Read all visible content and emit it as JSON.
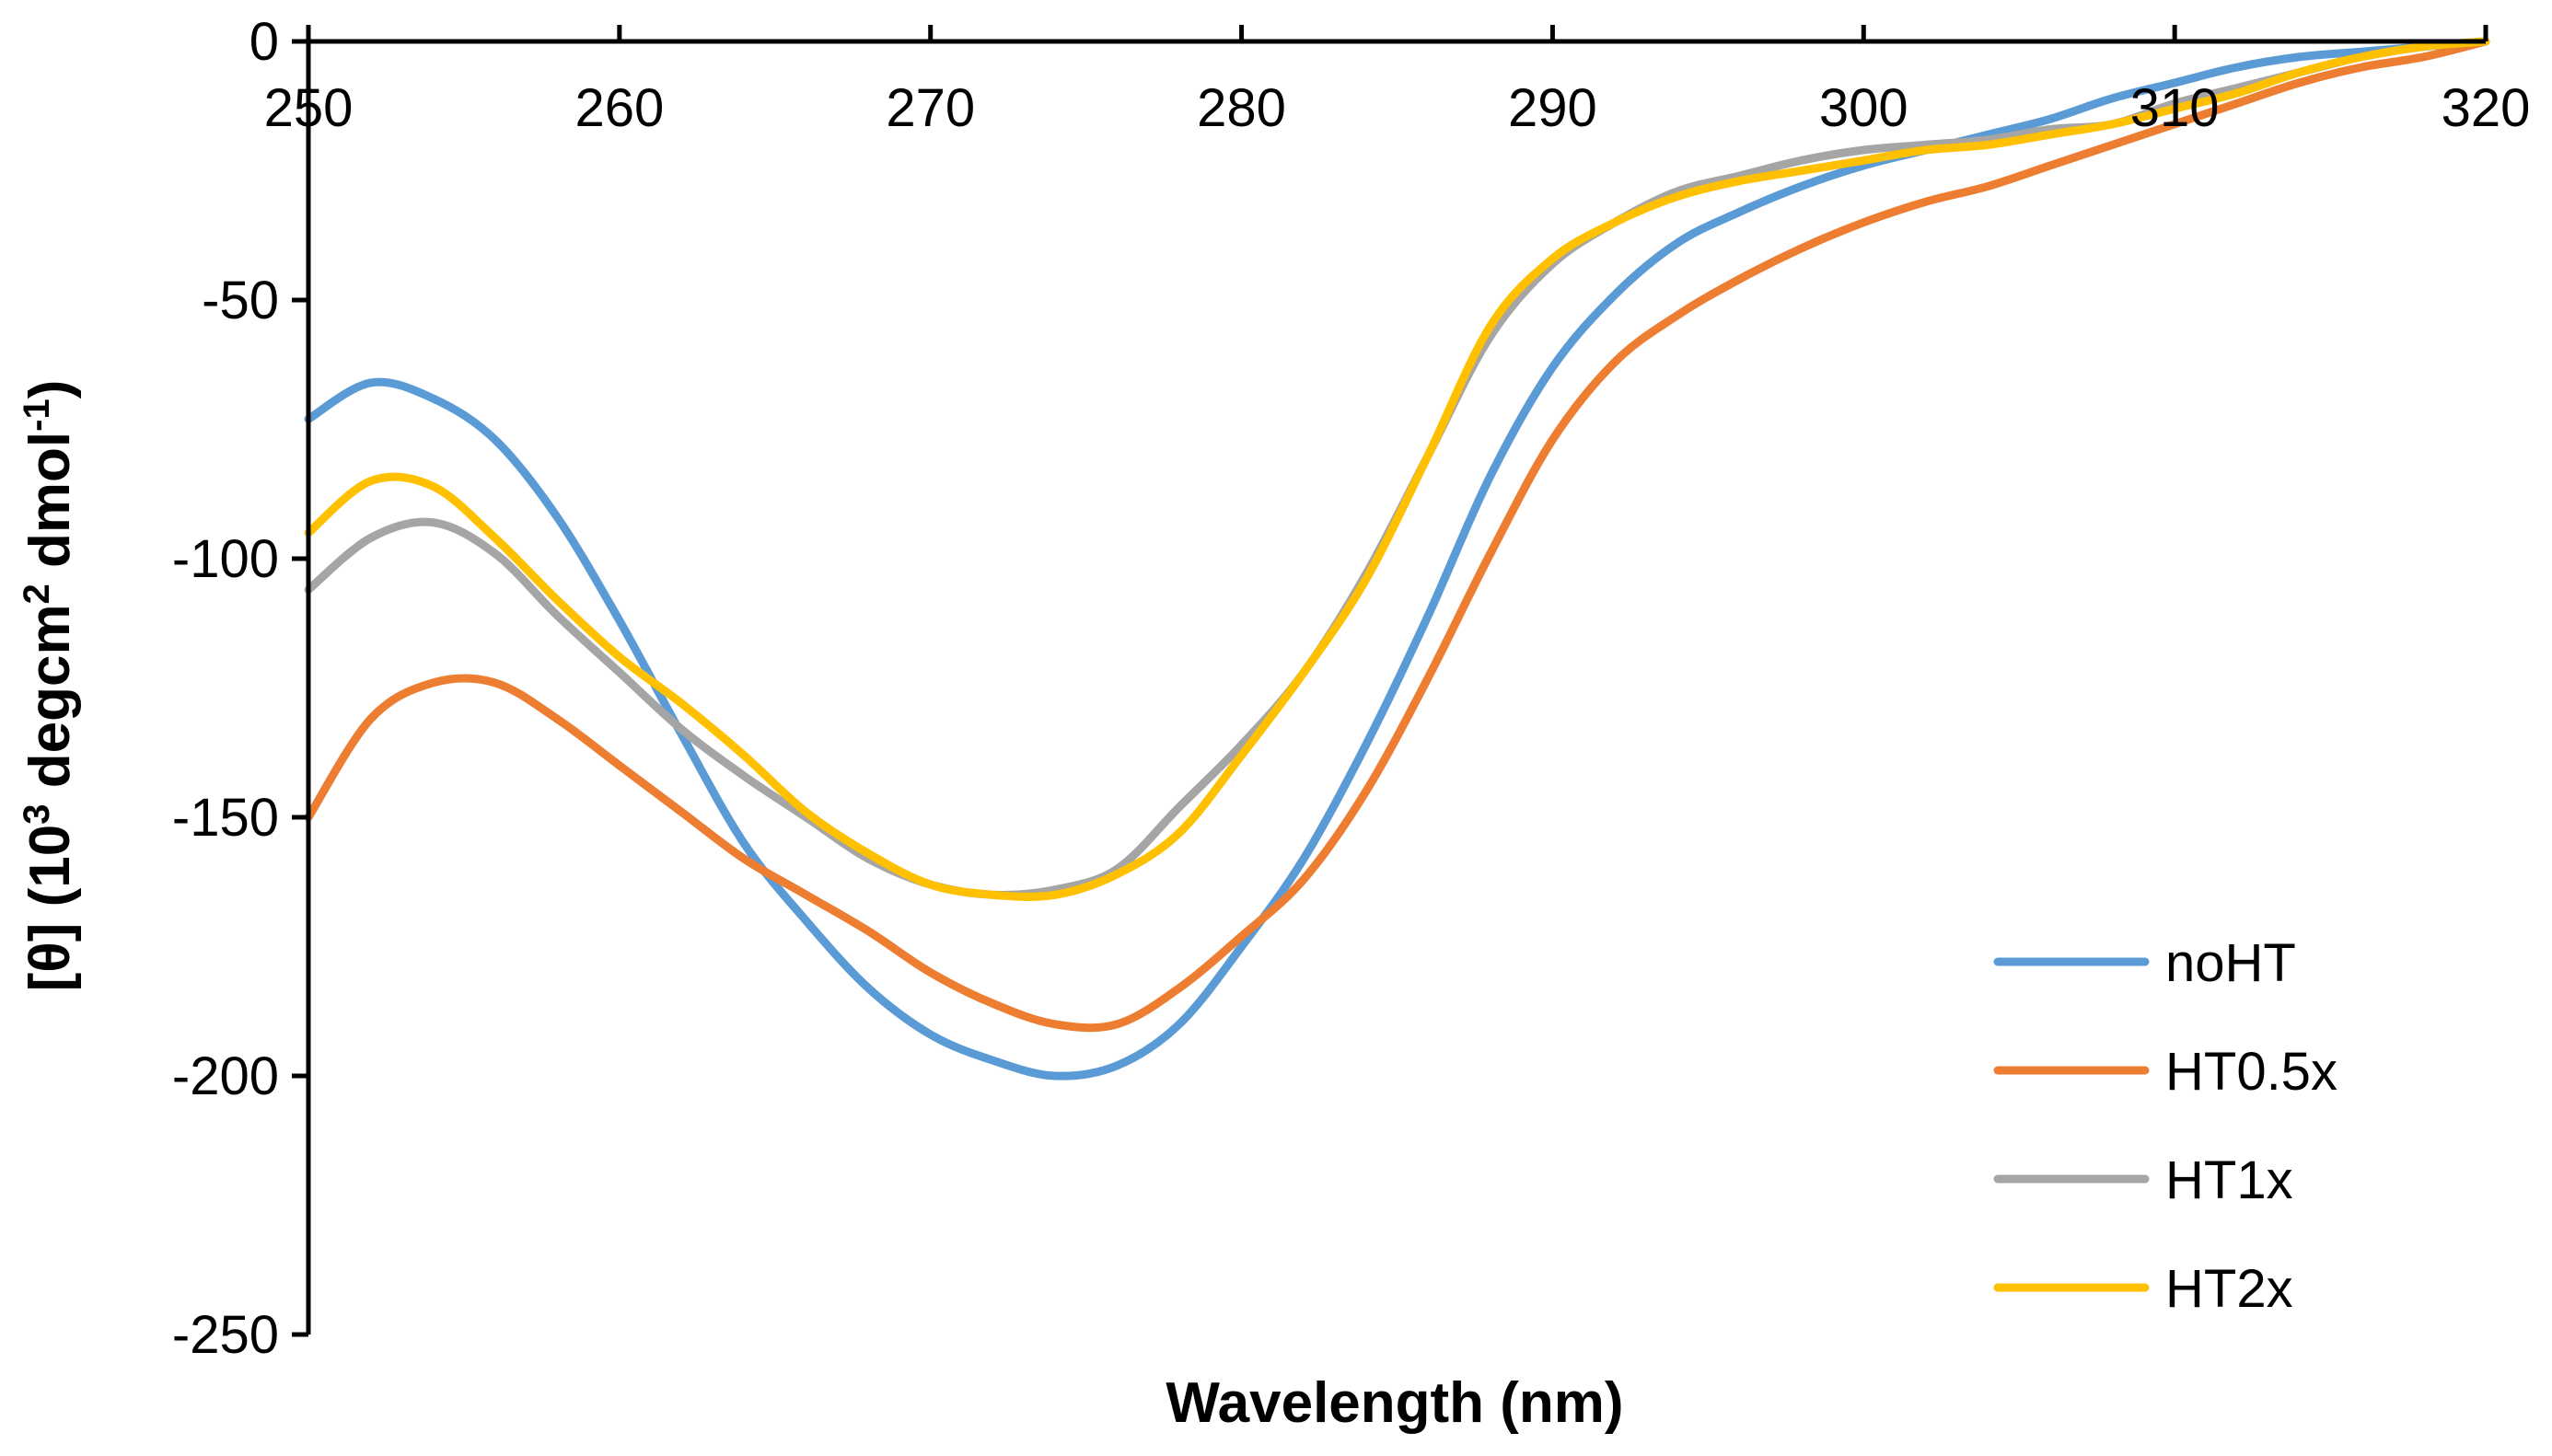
{
  "chart_data": {
    "type": "line",
    "title": "",
    "xlabel": "Wavelength (nm)",
    "ylabel_parts": [
      "[θ] (10",
      "3",
      " degcm",
      "2",
      " dmol",
      "-1",
      ")"
    ],
    "xlim": [
      250,
      320
    ],
    "ylim": [
      -250,
      0
    ],
    "x_ticks": [
      250,
      260,
      270,
      280,
      290,
      300,
      310,
      320
    ],
    "x_tick_labels": [
      "250",
      "260",
      "270",
      "280",
      "290",
      "300",
      "310",
      "320"
    ],
    "y_ticks": [
      0,
      -50,
      -100,
      -150,
      -200,
      -250
    ],
    "y_tick_labels": [
      "0",
      "-50",
      "-100",
      "-150",
      "-200",
      "-250"
    ],
    "x_axis_position": "top (at y = 0)",
    "grid": false,
    "legend_position": "bottom-right",
    "x": [
      250,
      252,
      254,
      256,
      258,
      260,
      262,
      264,
      266,
      268,
      270,
      272,
      274,
      276,
      278,
      280,
      282,
      284,
      286,
      288,
      290,
      292,
      294,
      296,
      298,
      300,
      302,
      304,
      306,
      308,
      310,
      312,
      314,
      316,
      318,
      320
    ],
    "series": [
      {
        "name": "noHT",
        "color": "#5B9BD5",
        "values": [
          -73,
          -66,
          -69,
          -77,
          -92,
          -112,
          -134,
          -155,
          -170,
          -183,
          -192,
          -197,
          -200,
          -198,
          -190,
          -175,
          -158,
          -136,
          -111,
          -84,
          -63,
          -49,
          -39,
          -33,
          -28,
          -24,
          -21,
          -18,
          -15,
          -11,
          -8,
          -5,
          -3,
          -2,
          -1,
          0
        ]
      },
      {
        "name": "HT0.5x",
        "color": "#ED7D31",
        "values": [
          -150,
          -131,
          -124,
          -124,
          -131,
          -140,
          -149,
          -158,
          -165,
          -172,
          -180,
          -186,
          -190,
          -190,
          -183,
          -173,
          -162,
          -145,
          -123,
          -99,
          -77,
          -62,
          -53,
          -46,
          -40,
          -35,
          -31,
          -28,
          -24,
          -20,
          -16,
          -12,
          -8,
          -5,
          -3,
          0
        ]
      },
      {
        "name": "HT1x",
        "color": "#A5A5A5",
        "values": [
          -106,
          -96,
          -93,
          -99,
          -111,
          -122,
          -133,
          -142,
          -150,
          -158,
          -163,
          -165,
          -164,
          -160,
          -148,
          -136,
          -122,
          -103,
          -80,
          -57,
          -43,
          -35,
          -29,
          -26,
          -23,
          -21,
          -20,
          -19,
          -17,
          -16,
          -12,
          -9,
          -6,
          -3,
          -1,
          0
        ]
      },
      {
        "name": "HT2x",
        "color": "#FFC000",
        "values": [
          -95,
          -85,
          -86,
          -96,
          -108,
          -119,
          -128,
          -138,
          -149,
          -157,
          -163,
          -165,
          -165,
          -161,
          -153,
          -138,
          -122,
          -104,
          -80,
          -55,
          -42,
          -35,
          -30,
          -27,
          -25,
          -23,
          -21,
          -20,
          -18,
          -16,
          -13,
          -10,
          -6,
          -3,
          -1,
          0
        ]
      }
    ]
  }
}
